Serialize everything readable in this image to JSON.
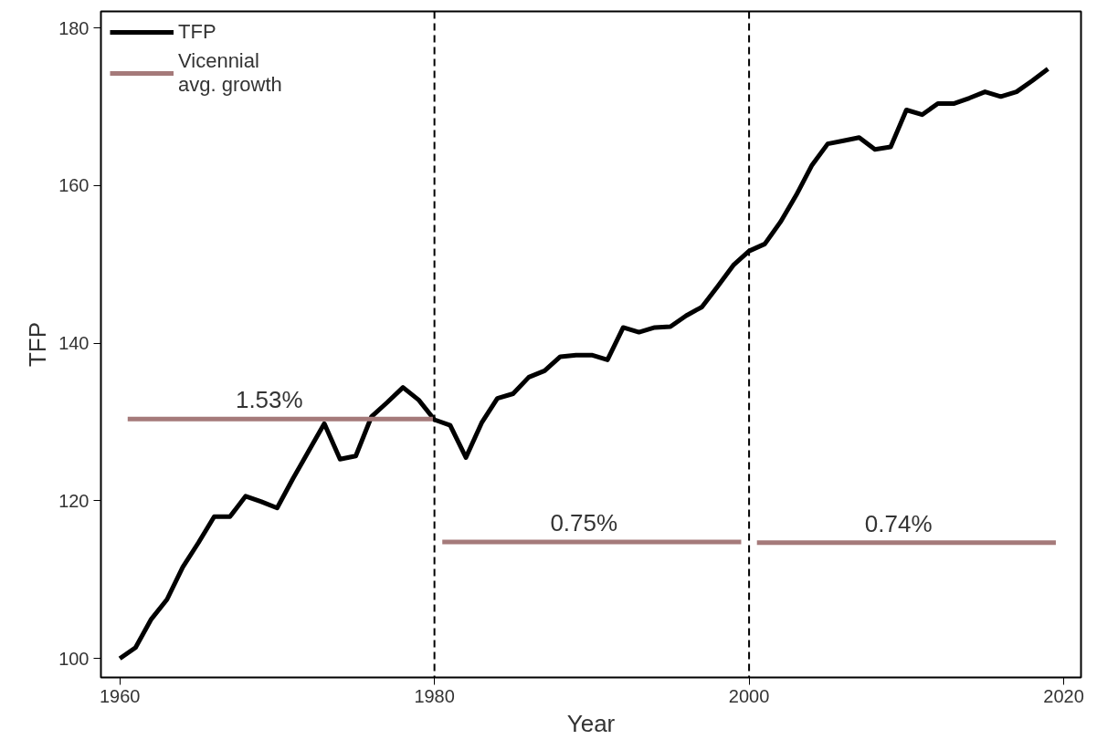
{
  "chart_data": {
    "type": "line",
    "xlabel": "Year",
    "ylabel": "TFP",
    "x": [
      1960,
      1961,
      1962,
      1963,
      1964,
      1965,
      1966,
      1967,
      1968,
      1969,
      1970,
      1971,
      1972,
      1973,
      1974,
      1975,
      1976,
      1977,
      1978,
      1979,
      1980,
      1981,
      1982,
      1983,
      1984,
      1985,
      1986,
      1987,
      1988,
      1989,
      1990,
      1991,
      1992,
      1993,
      1994,
      1995,
      1996,
      1997,
      1998,
      1999,
      2000,
      2001,
      2002,
      2003,
      2004,
      2005,
      2006,
      2007,
      2008,
      2009,
      2010,
      2011,
      2012,
      2013,
      2014,
      2015,
      2016,
      2017,
      2018,
      2019
    ],
    "series": [
      {
        "name": "TFP",
        "color": "#000000",
        "values": [
          100.0,
          101.4,
          105.0,
          107.5,
          111.6,
          114.7,
          118.0,
          118.0,
          120.6,
          119.9,
          119.1,
          122.8,
          126.3,
          129.8,
          125.3,
          125.7,
          130.7,
          132.5,
          134.4,
          132.8,
          130.3,
          129.6,
          125.5,
          129.9,
          133.0,
          133.6,
          135.7,
          136.5,
          138.3,
          138.5,
          138.5,
          137.9,
          142.0,
          141.4,
          142.0,
          142.1,
          143.5,
          144.6,
          147.2,
          149.9,
          151.7,
          152.6,
          155.4,
          158.8,
          162.6,
          165.3,
          165.7,
          166.1,
          164.6,
          164.9,
          169.6,
          169.0,
          170.4,
          170.4,
          171.1,
          171.9,
          171.3,
          171.9,
          173.3,
          174.8
        ]
      },
      {
        "name": "Vicennial avg. growth",
        "color": "#a57a7a",
        "x": [
          1960.5,
          1979.9,
          1980.2,
          1980.5,
          1999.5,
          2000.2,
          2000.5,
          2019.5
        ],
        "values": [
          130.4,
          130.4,
          null,
          114.8,
          114.8,
          null,
          114.7,
          114.7
        ]
      }
    ],
    "annotations": [
      {
        "text": "1.53%",
        "x": 1969.5,
        "y": 130.4
      },
      {
        "text": "0.75%",
        "x": 1989.5,
        "y": 114.8
      },
      {
        "text": "0.74%",
        "x": 2009.5,
        "y": 114.7
      }
    ],
    "ref_lines": [
      {
        "axis": "x",
        "value": 1980,
        "color": "#000000",
        "line_style": "dashed"
      },
      {
        "axis": "x",
        "value": 2000,
        "color": "#000000",
        "line_style": "dashed"
      }
    ],
    "xlim": [
      1958.8,
      2021.1
    ],
    "ylim": [
      97.6,
      182.1
    ],
    "xticks": [
      1960,
      1980,
      2000,
      2020
    ],
    "yticks": [
      100,
      120,
      140,
      160,
      180
    ],
    "grid": false,
    "legend": "top left",
    "marker": "none",
    "line_style": "solid"
  }
}
